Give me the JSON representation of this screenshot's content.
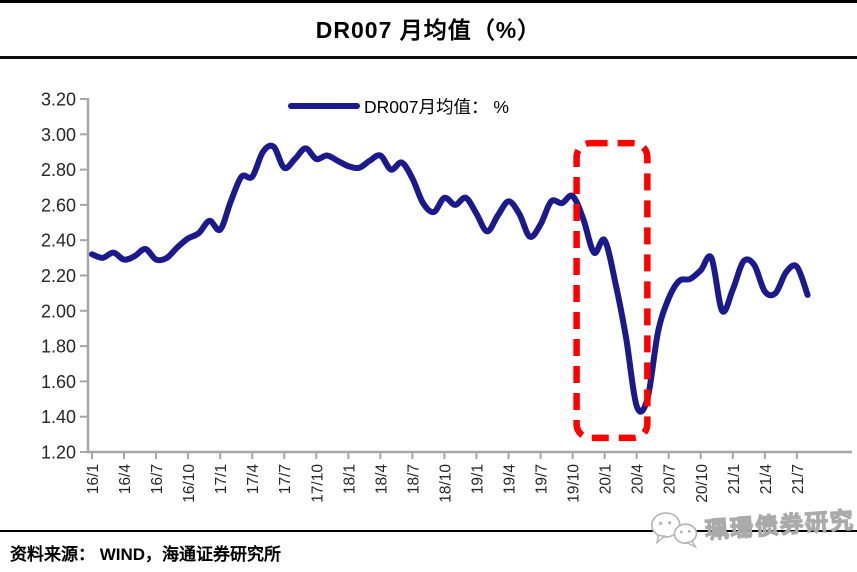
{
  "header": {
    "title": "DR007 月均值（%）"
  },
  "legend": {
    "label": "DR007月均值： %"
  },
  "chart_data": {
    "type": "line",
    "title": "DR007 月均值（%）",
    "series_name": "DR007月均值： %",
    "line_color": "#1a1a8c",
    "axis_color": "#a6a6a6",
    "tick_label_color": "#262626",
    "ylim": [
      1.2,
      3.2
    ],
    "ytick_step": 0.2,
    "yticks": [
      "3.20",
      "3.00",
      "2.80",
      "2.60",
      "2.40",
      "2.20",
      "2.00",
      "1.80",
      "1.60",
      "1.40",
      "1.20"
    ],
    "xticks": [
      "16/1",
      "16/4",
      "16/7",
      "16/10",
      "17/1",
      "17/4",
      "17/7",
      "17/10",
      "18/1",
      "18/4",
      "18/7",
      "18/10",
      "19/1",
      "19/4",
      "19/7",
      "19/10",
      "20/1",
      "20/4",
      "20/7",
      "20/10",
      "21/1",
      "21/4",
      "21/7"
    ],
    "x": [
      "16/1",
      "16/2",
      "16/3",
      "16/4",
      "16/5",
      "16/6",
      "16/7",
      "16/8",
      "16/9",
      "16/10",
      "16/11",
      "16/12",
      "17/1",
      "17/2",
      "17/3",
      "17/4",
      "17/5",
      "17/6",
      "17/7",
      "17/8",
      "17/9",
      "17/10",
      "17/11",
      "17/12",
      "18/1",
      "18/2",
      "18/3",
      "18/4",
      "18/5",
      "18/6",
      "18/7",
      "18/8",
      "18/9",
      "18/10",
      "18/11",
      "18/12",
      "19/1",
      "19/2",
      "19/3",
      "19/4",
      "19/5",
      "19/6",
      "19/7",
      "19/8",
      "19/9",
      "19/10",
      "19/11",
      "19/12",
      "20/1",
      "20/2",
      "20/3",
      "20/4",
      "20/5",
      "20/6",
      "20/7",
      "20/8",
      "20/9",
      "20/10",
      "20/11",
      "20/12",
      "21/1",
      "21/2",
      "21/3",
      "21/4",
      "21/5",
      "21/6",
      "21/7",
      "21/8"
    ],
    "values": [
      2.32,
      2.3,
      2.33,
      2.29,
      2.31,
      2.35,
      2.29,
      2.3,
      2.36,
      2.41,
      2.44,
      2.51,
      2.46,
      2.62,
      2.76,
      2.76,
      2.9,
      2.93,
      2.81,
      2.86,
      2.92,
      2.86,
      2.88,
      2.85,
      2.82,
      2.81,
      2.85,
      2.88,
      2.8,
      2.84,
      2.75,
      2.61,
      2.56,
      2.64,
      2.6,
      2.64,
      2.55,
      2.45,
      2.54,
      2.62,
      2.55,
      2.42,
      2.49,
      2.62,
      2.61,
      2.65,
      2.52,
      2.33,
      2.4,
      2.16,
      1.85,
      1.46,
      1.5,
      1.88,
      2.07,
      2.17,
      2.18,
      2.23,
      2.3,
      2.0,
      2.12,
      2.28,
      2.26,
      2.11,
      2.1,
      2.22,
      2.25,
      2.09
    ],
    "annotation": {
      "type": "dashed-box",
      "color": "#ff0000",
      "x_from": "19/10",
      "x_to": "20/5",
      "v_from": 1.28,
      "v_to": 2.95
    },
    "legend_position": "top-center",
    "grid": false
  },
  "footer": {
    "source": "资料来源： WIND，海通证券研究所"
  },
  "watermark": {
    "text": "珮珊债券研究",
    "icon": "wechat-chat-bubbles-icon"
  }
}
